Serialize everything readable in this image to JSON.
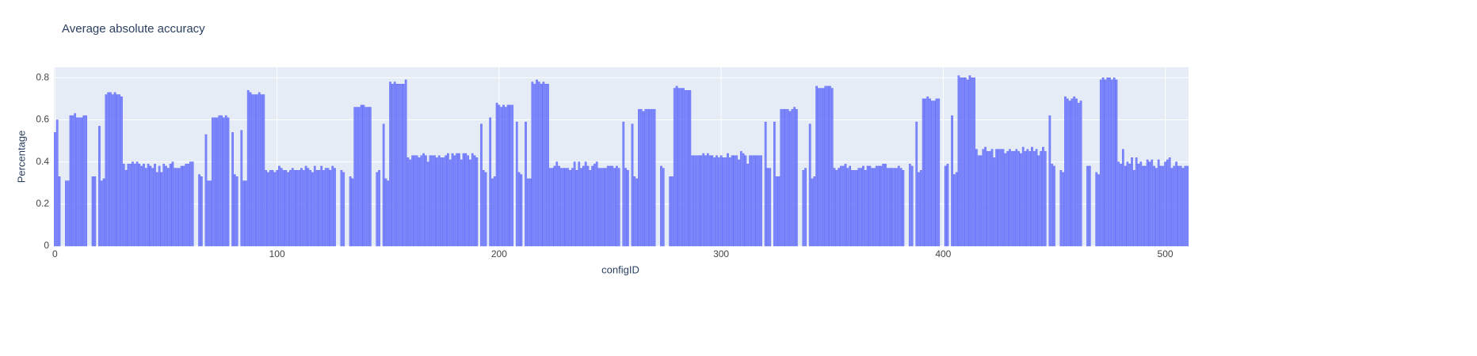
{
  "chart_data": {
    "type": "bar",
    "title": "Average absolute accuracy",
    "x_label": "configID",
    "y_label": "Percentage",
    "color": "#636efa",
    "grid": true,
    "xlim": [
      -0.5,
      510.5
    ],
    "xticks": [
      0,
      100,
      200,
      300,
      400,
      500
    ],
    "ylim": [
      0,
      0.85
    ],
    "yticks": [
      0,
      0.2,
      0.4,
      0.6,
      0.8
    ],
    "x": [
      0,
      1,
      2,
      3,
      4,
      5,
      6,
      7,
      8,
      9,
      10,
      11,
      12,
      13,
      14,
      15,
      16,
      17,
      18,
      19,
      20,
      21,
      22,
      23,
      24,
      25,
      26,
      27,
      28,
      29,
      30,
      31,
      32,
      33,
      34,
      35,
      36,
      37,
      38,
      39,
      40,
      41,
      42,
      43,
      44,
      45,
      46,
      47,
      48,
      49,
      50,
      51,
      52,
      53,
      54,
      55,
      56,
      57,
      58,
      59,
      60,
      61,
      62,
      63,
      64,
      65,
      66,
      67,
      68,
      69,
      70,
      71,
      72,
      73,
      74,
      75,
      76,
      77,
      78,
      79,
      80,
      81,
      82,
      83,
      84,
      85,
      86,
      87,
      88,
      89,
      90,
      91,
      92,
      93,
      94,
      95,
      96,
      97,
      98,
      99,
      100,
      101,
      102,
      103,
      104,
      105,
      106,
      107,
      108,
      109,
      110,
      111,
      112,
      113,
      114,
      115,
      116,
      117,
      118,
      119,
      120,
      121,
      122,
      123,
      124,
      125,
      126,
      127,
      128,
      129,
      130,
      131,
      132,
      133,
      134,
      135,
      136,
      137,
      138,
      139,
      140,
      141,
      142,
      143,
      144,
      145,
      146,
      147,
      148,
      149,
      150,
      151,
      152,
      153,
      154,
      155,
      156,
      157,
      158,
      159,
      160,
      161,
      162,
      163,
      164,
      165,
      166,
      167,
      168,
      169,
      170,
      171,
      172,
      173,
      174,
      175,
      176,
      177,
      178,
      179,
      180,
      181,
      182,
      183,
      184,
      185,
      186,
      187,
      188,
      189,
      190,
      191,
      192,
      193,
      194,
      195,
      196,
      197,
      198,
      199,
      200,
      201,
      202,
      203,
      204,
      205,
      206,
      207,
      208,
      209,
      210,
      211,
      212,
      213,
      214,
      215,
      216,
      217,
      218,
      219,
      220,
      221,
      222,
      223,
      224,
      225,
      226,
      227,
      228,
      229,
      230,
      231,
      232,
      233,
      234,
      235,
      236,
      237,
      238,
      239,
      240,
      241,
      242,
      243,
      244,
      245,
      246,
      247,
      248,
      249,
      250,
      251,
      252,
      253,
      254,
      255,
      256,
      257,
      258,
      259,
      260,
      261,
      262,
      263,
      264,
      265,
      266,
      267,
      268,
      269,
      270,
      271,
      272,
      273,
      274,
      275,
      276,
      277,
      278,
      279,
      280,
      281,
      282,
      283,
      284,
      285,
      286,
      287,
      288,
      289,
      290,
      291,
      292,
      293,
      294,
      295,
      296,
      297,
      298,
      299,
      300,
      301,
      302,
      303,
      304,
      305,
      306,
      307,
      308,
      309,
      310,
      311,
      312,
      313,
      314,
      315,
      316,
      317,
      318,
      319,
      320,
      321,
      322,
      323,
      324,
      325,
      326,
      327,
      328,
      329,
      330,
      331,
      332,
      333,
      334,
      335,
      336,
      337,
      338,
      339,
      340,
      341,
      342,
      343,
      344,
      345,
      346,
      347,
      348,
      349,
      350,
      351,
      352,
      353,
      354,
      355,
      356,
      357,
      358,
      359,
      360,
      361,
      362,
      363,
      364,
      365,
      366,
      367,
      368,
      369,
      370,
      371,
      372,
      373,
      374,
      375,
      376,
      377,
      378,
      379,
      380,
      381,
      382,
      383,
      384,
      385,
      386,
      387,
      388,
      389,
      390,
      391,
      392,
      393,
      394,
      395,
      396,
      397,
      398,
      399,
      400,
      401,
      402,
      403,
      404,
      405,
      406,
      407,
      408,
      409,
      410,
      411,
      412,
      413,
      414,
      415,
      416,
      417,
      418,
      419,
      420,
      421,
      422,
      423,
      424,
      425,
      426,
      427,
      428,
      429,
      430,
      431,
      432,
      433,
      434,
      435,
      436,
      437,
      438,
      439,
      440,
      441,
      442,
      443,
      444,
      445,
      446,
      447,
      448,
      449,
      450,
      451,
      452,
      453,
      454,
      455,
      456,
      457,
      458,
      459,
      460,
      461,
      462,
      463,
      464,
      465,
      466,
      467,
      468,
      469,
      470,
      471,
      472,
      473,
      474,
      475,
      476,
      477,
      478,
      479,
      480,
      481,
      482,
      483,
      484,
      485,
      486,
      487,
      488,
      489,
      490,
      491,
      492,
      493,
      494,
      495,
      496,
      497,
      498,
      499,
      500,
      501,
      502,
      503,
      504,
      505,
      506,
      507,
      508,
      509,
      510
    ],
    "values": [
      0.54,
      0.6,
      0.33,
      null,
      null,
      0.31,
      0.31,
      0.62,
      0.62,
      0.63,
      0.61,
      0.61,
      0.61,
      0.62,
      0.62,
      null,
      null,
      0.33,
      0.33,
      null,
      0.57,
      0.31,
      0.32,
      0.72,
      0.73,
      0.73,
      0.72,
      0.73,
      0.72,
      0.72,
      0.71,
      0.39,
      0.36,
      0.39,
      0.39,
      0.4,
      0.39,
      0.4,
      0.39,
      0.38,
      0.39,
      0.37,
      0.39,
      0.38,
      0.37,
      0.39,
      0.35,
      0.38,
      0.35,
      0.39,
      0.38,
      0.37,
      0.39,
      0.4,
      0.37,
      0.37,
      0.37,
      0.38,
      0.38,
      0.39,
      0.39,
      0.4,
      0.4,
      null,
      null,
      0.34,
      0.33,
      null,
      0.53,
      0.31,
      0.31,
      0.61,
      0.61,
      0.61,
      0.62,
      0.62,
      0.61,
      0.62,
      0.61,
      null,
      0.54,
      0.34,
      0.33,
      null,
      0.55,
      0.31,
      0.31,
      0.74,
      0.73,
      0.72,
      0.72,
      0.72,
      0.73,
      0.72,
      0.72,
      0.36,
      0.35,
      0.36,
      0.36,
      0.35,
      0.36,
      0.38,
      0.37,
      0.36,
      0.36,
      0.35,
      0.36,
      0.37,
      0.36,
      0.36,
      0.36,
      0.37,
      0.36,
      0.38,
      0.37,
      0.36,
      0.35,
      0.38,
      0.36,
      0.36,
      0.38,
      0.36,
      0.37,
      0.37,
      0.36,
      0.38,
      0.37,
      null,
      null,
      0.36,
      0.35,
      null,
      null,
      0.33,
      0.32,
      0.66,
      0.66,
      0.66,
      0.67,
      0.67,
      0.66,
      0.66,
      0.66,
      null,
      null,
      0.35,
      0.36,
      null,
      0.58,
      0.32,
      0.31,
      0.78,
      0.77,
      0.78,
      0.77,
      0.77,
      0.77,
      0.77,
      0.79,
      0.42,
      0.41,
      0.43,
      0.43,
      0.43,
      0.42,
      0.43,
      0.44,
      0.43,
      0.4,
      0.43,
      0.43,
      0.43,
      0.42,
      0.43,
      0.42,
      0.42,
      0.43,
      0.44,
      0.41,
      0.44,
      0.43,
      0.44,
      0.44,
      0.41,
      0.44,
      0.44,
      0.43,
      0.41,
      0.44,
      0.43,
      0.42,
      null,
      0.58,
      0.36,
      0.35,
      null,
      0.61,
      0.32,
      0.33,
      0.68,
      0.67,
      0.66,
      0.67,
      0.66,
      0.67,
      0.67,
      0.67,
      null,
      0.59,
      0.35,
      0.34,
      null,
      0.59,
      0.32,
      0.32,
      0.78,
      0.77,
      0.79,
      0.78,
      0.77,
      0.78,
      0.77,
      0.77,
      0.37,
      0.37,
      0.38,
      0.4,
      0.38,
      0.37,
      0.37,
      0.37,
      0.37,
      0.36,
      0.37,
      0.4,
      0.36,
      0.4,
      0.37,
      0.38,
      0.4,
      0.38,
      0.36,
      0.38,
      0.39,
      0.4,
      0.37,
      0.37,
      0.37,
      0.37,
      0.38,
      0.38,
      0.38,
      0.37,
      0.38,
      0.37,
      null,
      0.59,
      0.37,
      0.36,
      null,
      0.58,
      0.33,
      0.32,
      0.65,
      0.65,
      0.64,
      0.65,
      0.65,
      0.65,
      0.65,
      0.65,
      null,
      null,
      0.38,
      0.37,
      null,
      null,
      0.33,
      0.33,
      0.75,
      0.76,
      0.75,
      0.75,
      0.75,
      0.74,
      0.74,
      0.74,
      0.43,
      0.43,
      0.43,
      0.43,
      0.43,
      0.44,
      0.43,
      0.44,
      0.43,
      0.43,
      0.42,
      0.43,
      0.42,
      0.43,
      0.42,
      0.42,
      0.44,
      0.42,
      0.43,
      0.43,
      0.43,
      0.41,
      0.45,
      0.44,
      0.43,
      0.39,
      0.43,
      0.43,
      0.43,
      0.43,
      0.43,
      0.43,
      null,
      0.59,
      0.37,
      0.37,
      null,
      0.59,
      0.33,
      0.33,
      0.65,
      0.65,
      0.65,
      0.65,
      0.64,
      0.65,
      0.66,
      0.65,
      null,
      null,
      0.36,
      0.37,
      null,
      0.58,
      0.32,
      0.33,
      0.76,
      0.75,
      0.75,
      0.75,
      0.76,
      0.76,
      0.76,
      0.75,
      0.37,
      0.36,
      0.37,
      0.38,
      0.38,
      0.39,
      0.37,
      0.38,
      0.36,
      0.36,
      0.36,
      0.37,
      0.37,
      0.38,
      0.36,
      0.38,
      0.38,
      0.37,
      0.37,
      0.38,
      0.38,
      0.38,
      0.39,
      0.39,
      0.37,
      0.37,
      0.37,
      0.37,
      0.37,
      0.38,
      0.37,
      0.36,
      null,
      null,
      0.39,
      0.38,
      null,
      0.59,
      0.35,
      0.36,
      0.7,
      0.7,
      0.71,
      0.7,
      0.69,
      0.69,
      0.7,
      0.7,
      null,
      null,
      0.38,
      0.39,
      null,
      0.62,
      0.34,
      0.35,
      0.81,
      0.8,
      0.8,
      0.8,
      0.79,
      0.81,
      0.8,
      0.8,
      0.46,
      0.43,
      0.43,
      0.46,
      0.47,
      0.45,
      0.45,
      0.46,
      0.42,
      0.46,
      0.46,
      0.46,
      0.46,
      0.44,
      0.45,
      0.46,
      0.45,
      0.45,
      0.46,
      0.45,
      0.44,
      0.47,
      0.45,
      0.46,
      0.45,
      0.47,
      0.45,
      0.46,
      0.43,
      0.45,
      0.47,
      0.45,
      null,
      0.62,
      0.39,
      0.38,
      null,
      null,
      0.36,
      0.35,
      0.71,
      0.7,
      0.69,
      0.7,
      0.71,
      0.7,
      0.68,
      0.69,
      null,
      null,
      0.38,
      0.38,
      null,
      null,
      0.35,
      0.34,
      0.79,
      0.8,
      0.79,
      0.8,
      0.8,
      0.79,
      0.8,
      0.79,
      0.4,
      0.39,
      0.46,
      0.38,
      0.4,
      0.39,
      0.42,
      0.36,
      0.42,
      0.39,
      0.4,
      0.38,
      0.38,
      0.41,
      0.4,
      0.41,
      0.38,
      0.37,
      0.41,
      0.38,
      0.38,
      0.4,
      0.41,
      0.42,
      0.37,
      0.38,
      0.4,
      0.38,
      0.38,
      0.37,
      0.38,
      0.38
    ]
  }
}
